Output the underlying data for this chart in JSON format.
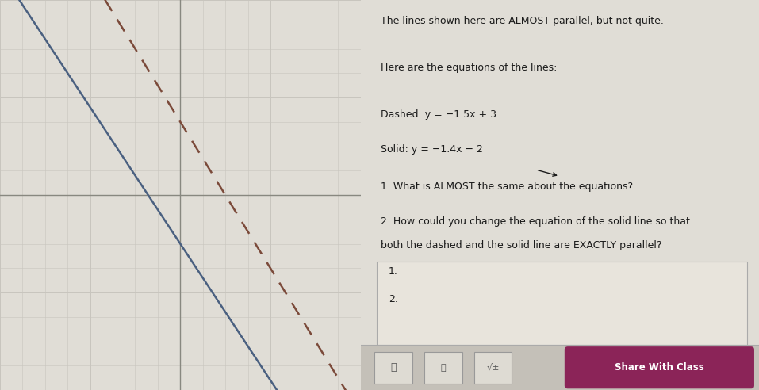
{
  "graph_xlim": [
    -8,
    8
  ],
  "graph_ylim": [
    -8,
    8
  ],
  "xticks": [
    -8,
    -4,
    0,
    4,
    8
  ],
  "yticks": [
    -8,
    -4,
    0,
    4,
    8
  ],
  "dashed_slope": -1.5,
  "dashed_intercept": 3,
  "solid_slope": -1.4,
  "solid_intercept": -2,
  "dashed_color": "#7B4A3A",
  "solid_color": "#4A6080",
  "background_color": "#E0DDD6",
  "grid_color": "#C8C5BE",
  "axis_color": "#888880",
  "text_color": "#1A1A1A",
  "title_text": "The lines shown here are ALMOST parallel, but not quite.",
  "eq_label": "Here are the equations of the lines:",
  "dashed_eq": "Dashed: y = −1.5x + 3",
  "solid_eq": "Solid: y = −1.4x − 2",
  "q1": "1. What is ALMOST the same about the equations?",
  "q2_line1": "2. How could you change the equation of the solid line so that",
  "q2_line2": "both the dashed and the solid line are EXACTLY parallel?",
  "ans1": "1.",
  "ans2": "2.",
  "share_btn_color": "#8B2458",
  "share_btn_text": "Share With Class",
  "panel_bg_color": "#D8D4CC",
  "answer_box_color": "#E8E4DC",
  "toolbar_bg_color": "#C4C0B8"
}
